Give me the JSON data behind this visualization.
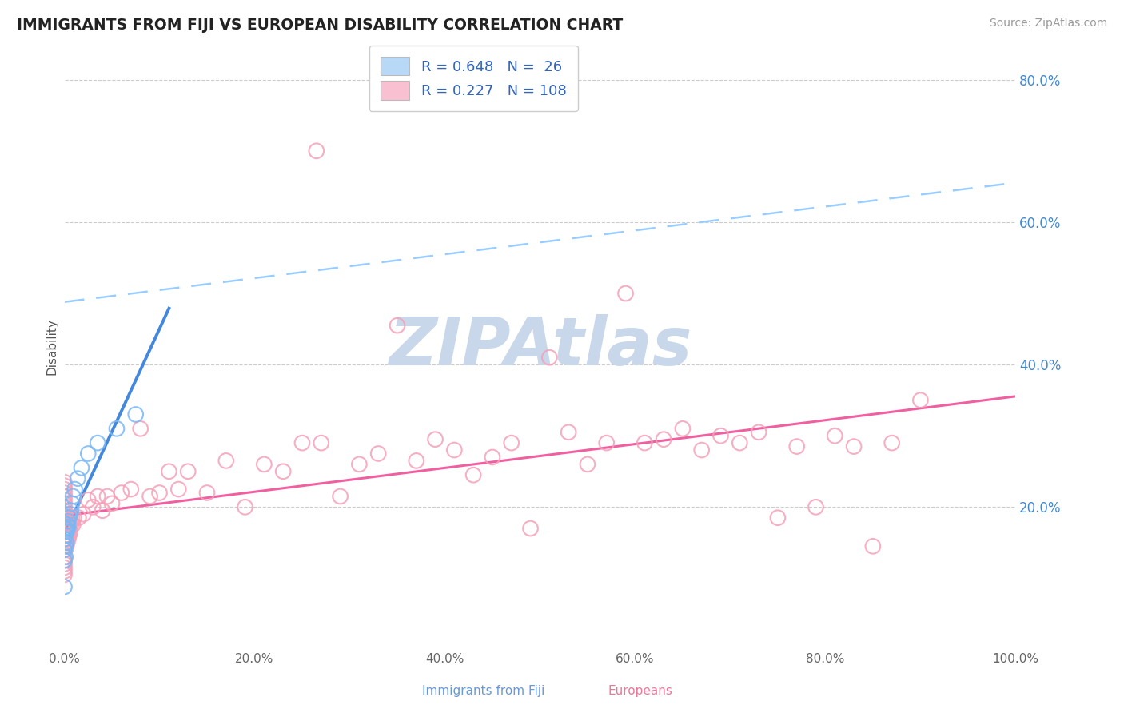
{
  "title": "IMMIGRANTS FROM FIJI VS EUROPEAN DISABILITY CORRELATION CHART",
  "source": "Source: ZipAtlas.com",
  "ylabel": "Disability",
  "xlim": [
    0.0,
    1.0
  ],
  "ylim": [
    0.0,
    0.85
  ],
  "x_tick_labels": [
    "0.0%",
    "20.0%",
    "40.0%",
    "60.0%",
    "80.0%",
    "100.0%"
  ],
  "x_tick_vals": [
    0.0,
    0.2,
    0.4,
    0.6,
    0.8,
    1.0
  ],
  "y_tick_labels": [
    "20.0%",
    "40.0%",
    "60.0%",
    "80.0%"
  ],
  "y_tick_vals": [
    0.2,
    0.4,
    0.6,
    0.8
  ],
  "legend_fiji_R": "0.648",
  "legend_fiji_N": "26",
  "legend_euro_R": "0.227",
  "legend_euro_N": "108",
  "fiji_marker_color": "#7ab8f5",
  "euro_marker_color": "#f5a0b8",
  "trendline_fiji_color": "#4488dd",
  "trendline_euro_dashed_color": "#99ccff",
  "trendline_euro_solid_color": "#f060a0",
  "watermark_color": "#c8d8ea",
  "legend_fiji_patch": "#b8d8f8",
  "legend_euro_patch": "#f8c0d0",
  "fiji_legend_label": "R = 0.648   N =  26",
  "euro_legend_label": "R = 0.227   N = 108",
  "bottom_label_fiji": "Immigrants from Fiji",
  "bottom_label_euro": "Europeans",
  "bottom_fiji_color": "#6699dd",
  "bottom_euro_color": "#ee7799"
}
